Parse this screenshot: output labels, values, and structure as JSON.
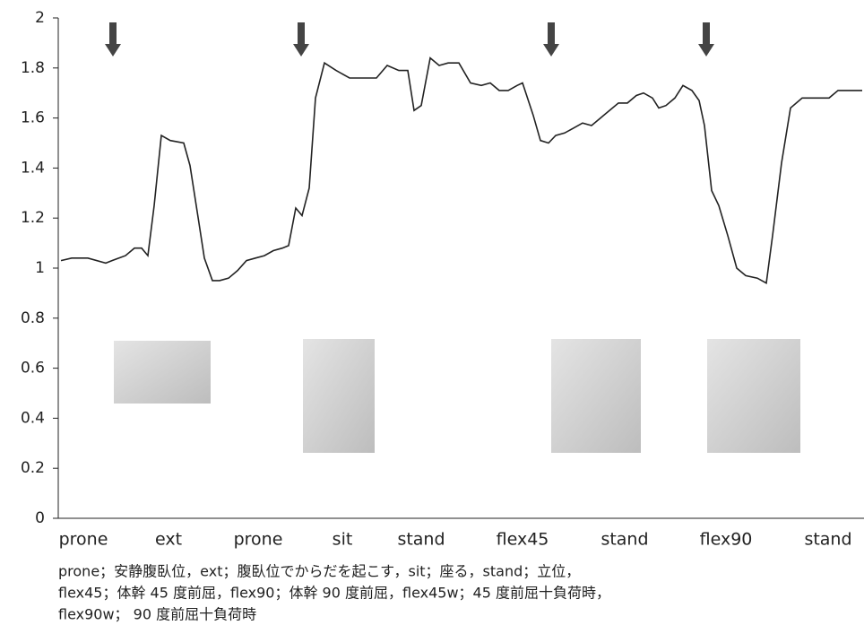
{
  "chart_data": {
    "type": "line",
    "x": [
      3,
      15,
      33,
      53,
      60,
      75,
      85,
      93,
      100,
      107,
      115,
      125,
      140,
      147,
      157,
      163,
      172,
      180,
      190,
      200,
      210,
      220,
      230,
      240,
      250,
      257,
      265,
      272,
      280,
      287,
      297,
      310,
      325,
      340,
      355,
      367,
      380,
      390,
      397,
      405,
      415,
      425,
      435,
      447,
      460,
      472,
      482,
      492,
      502,
      512,
      518,
      530,
      538,
      547,
      555,
      565,
      575,
      585,
      595,
      605,
      615,
      625,
      635,
      645,
      653,
      663,
      670,
      678,
      688,
      697,
      707,
      715,
      721,
      729,
      737,
      747,
      757,
      767,
      780,
      790,
      797,
      807,
      817,
      830,
      840,
      850,
      860,
      870,
      885,
      897
    ],
    "values": [
      1.03,
      1.04,
      1.04,
      1.02,
      1.03,
      1.05,
      1.08,
      1.08,
      1.05,
      1.25,
      1.53,
      1.51,
      1.5,
      1.41,
      1.18,
      1.04,
      0.95,
      0.95,
      0.96,
      0.99,
      1.03,
      1.04,
      1.05,
      1.07,
      1.08,
      1.09,
      1.24,
      1.21,
      1.32,
      1.68,
      1.82,
      1.79,
      1.76,
      1.76,
      1.76,
      1.81,
      1.79,
      1.79,
      1.63,
      1.65,
      1.84,
      1.81,
      1.82,
      1.82,
      1.74,
      1.73,
      1.74,
      1.71,
      1.71,
      1.73,
      1.74,
      1.61,
      1.51,
      1.5,
      1.53,
      1.54,
      1.56,
      1.58,
      1.57,
      1.6,
      1.63,
      1.66,
      1.66,
      1.69,
      1.7,
      1.68,
      1.64,
      1.65,
      1.68,
      1.73,
      1.71,
      1.67,
      1.57,
      1.31,
      1.25,
      1.13,
      1.0,
      0.97,
      0.96,
      0.94,
      1.13,
      1.42,
      1.64,
      1.68,
      1.68,
      1.68,
      1.68,
      1.71,
      1.71,
      1.71
    ],
    "color": "#222222",
    "xlim": [
      0,
      900
    ],
    "xticks": [
      {
        "value": 28,
        "label": "prone"
      },
      {
        "value": 123,
        "label": "ext"
      },
      {
        "value": 223,
        "label": "prone"
      },
      {
        "value": 317,
        "label": "sit"
      },
      {
        "value": 405,
        "label": "stand"
      },
      {
        "value": 518,
        "label": "flex45"
      },
      {
        "value": 632,
        "label": "stand"
      },
      {
        "value": 745,
        "label": "flex90"
      },
      {
        "value": 859,
        "label": "stand"
      }
    ],
    "ylim": [
      0,
      2
    ],
    "yticks": [
      0,
      0.2,
      0.4,
      0.6,
      0.8,
      1,
      1.2,
      1.4,
      1.6,
      1.8,
      2
    ],
    "grid": false,
    "caption": [
      "prone；安静腹臥位，ext；腹臥位でからだを起こす，sit；座る，stand；立位，",
      "flex45；体幹 45 度前屈，flex90；体幹 90 度前屈，flex45w；45 度前屈十負荷時，",
      "flex90w； 90 度前屈十負荷時"
    ]
  }
}
